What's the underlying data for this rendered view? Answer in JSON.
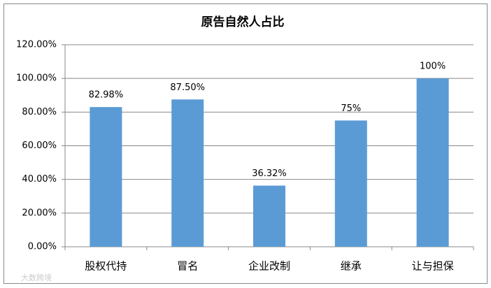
{
  "chart_data": {
    "type": "bar",
    "title": "原告自然人占比",
    "categories": [
      "股权代持",
      "冒名",
      "企业改制",
      "继承",
      "让与担保"
    ],
    "values": [
      82.98,
      87.5,
      36.32,
      75,
      100
    ],
    "value_labels": [
      "82.98%",
      "87.50%",
      "36.32%",
      "75%",
      "100%"
    ],
    "color": "#5b9bd5",
    "ylim": [
      0,
      120
    ],
    "yticks": [
      {
        "value": 0,
        "label": "0.00%"
      },
      {
        "value": 20,
        "label": "20.00%"
      },
      {
        "value": 40,
        "label": "40.00%"
      },
      {
        "value": 60,
        "label": "60.00%"
      },
      {
        "value": 80,
        "label": "80.00%"
      },
      {
        "value": 100,
        "label": "100.00%"
      },
      {
        "value": 120,
        "label": "120.00%"
      }
    ],
    "grid": true,
    "watermark": "大数跨境"
  }
}
